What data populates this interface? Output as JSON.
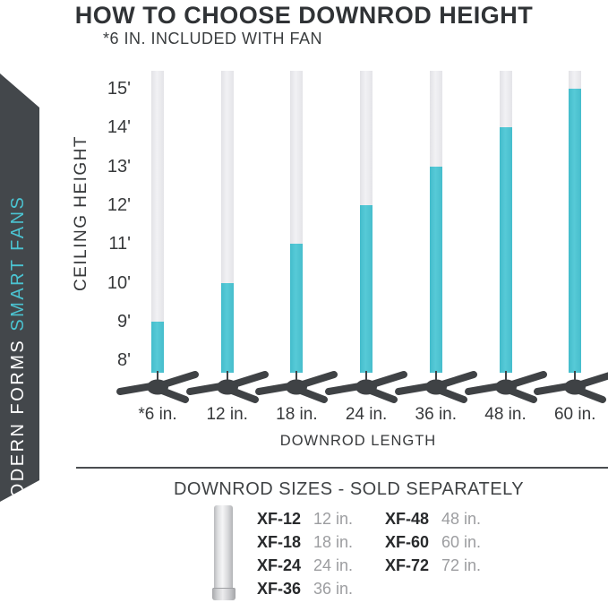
{
  "page": {
    "title": "HOW TO CHOOSE DOWNROD HEIGHT",
    "subtitle": "*6 IN. INCLUDED WITH FAN"
  },
  "banner": {
    "brand_primary": "MODERN FORMS",
    "brand_secondary": "SMART FANS",
    "bg_color": "#43474B",
    "primary_text_color": "#FFFFFF",
    "secondary_text_color": "#4BC3D1"
  },
  "chart_data": {
    "type": "bar",
    "title": "HOW TO CHOOSE DOWNROD HEIGHT",
    "xlabel": "DOWNROD LENGTH",
    "ylabel": "CEILING HEIGHT",
    "categories": [
      "*6 in.",
      "12 in.",
      "18 in.",
      "24 in.",
      "36 in.",
      "48 in.",
      "60 in."
    ],
    "values": [
      9,
      10,
      11,
      12,
      13,
      14,
      15
    ],
    "value_unit": "ft ceiling height",
    "y_ticks": [
      "15'",
      "14'",
      "13'",
      "12'",
      "11'",
      "10'",
      "9'",
      "8'"
    ],
    "ylim": [
      8,
      15
    ],
    "rod_full_top_ft": 15.47,
    "grid": false,
    "legend": false,
    "bar_active_color": "#4BC3D1",
    "bar_inactive_color": "#E9E9EC",
    "fan_color": "#3F4245"
  },
  "sizes_table": {
    "heading": "DOWNROD SIZES - SOLD SEPARATELY",
    "columns": [
      {
        "rows": [
          {
            "model": "XF-12",
            "size": "12 in."
          },
          {
            "model": "XF-18",
            "size": "18 in."
          },
          {
            "model": "XF-24",
            "size": "24 in."
          },
          {
            "model": "XF-36",
            "size": "36 in."
          }
        ]
      },
      {
        "rows": [
          {
            "model": "XF-48",
            "size": "48 in."
          },
          {
            "model": "XF-60",
            "size": "60 in."
          },
          {
            "model": "XF-72",
            "size": "72 in."
          }
        ]
      }
    ]
  }
}
